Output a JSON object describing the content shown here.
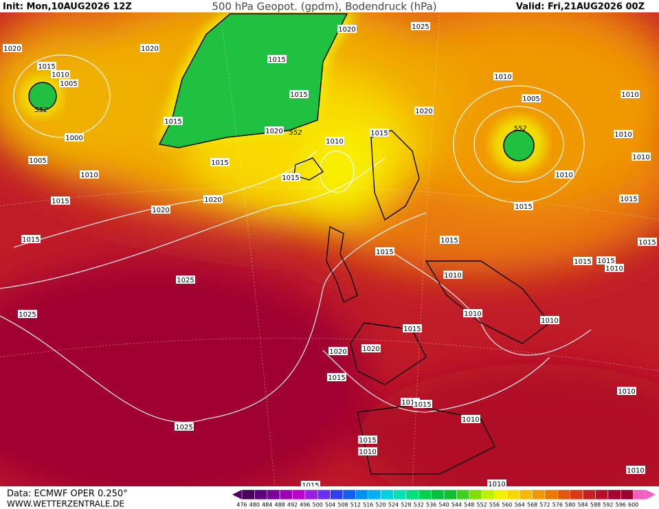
{
  "header": {
    "init": "Init: Mon,10AUG2026 12Z",
    "title": "500 hPa Geopot. (gpdm), Bodendruck (hPa)",
    "valid": "Valid: Fri,21AUG2026 00Z"
  },
  "footer": {
    "source": "Data: ECMWF OPER 0.250°",
    "site": "WWW.WETTERZENTRALE.DE"
  },
  "geopotential_labels": [
    552,
    552,
    552
  ],
  "isobar_labels": [
    1020,
    1020,
    1025,
    1015,
    1010,
    1005,
    1020,
    1015,
    1015,
    1015,
    1020,
    1005,
    1010,
    1010,
    1000,
    1020,
    1015,
    1010,
    1005,
    1015,
    1010,
    1010,
    1010,
    1015,
    1010,
    1015,
    1020,
    1020,
    1015,
    1015,
    1015,
    1015,
    1015,
    1015,
    1015,
    1015,
    1010,
    1010,
    1025,
    1025,
    1010,
    1010,
    1015,
    1020,
    1020,
    1015,
    1010,
    1015,
    1015,
    1010,
    1025,
    1015,
    1010,
    1010,
    1010,
    1015
  ],
  "legend": {
    "levels": [
      476,
      480,
      484,
      488,
      492,
      496,
      500,
      504,
      508,
      512,
      516,
      520,
      524,
      528,
      532,
      536,
      540,
      544,
      548,
      552,
      556,
      560,
      564,
      568,
      572,
      576,
      580,
      584,
      588,
      592,
      596,
      600
    ],
    "colors": [
      "#4b0060",
      "#5c0080",
      "#7a0098",
      "#9a00b0",
      "#b800c8",
      "#9a20e0",
      "#6a30f0",
      "#3040f0",
      "#1060f0",
      "#0090f0",
      "#00b0f0",
      "#00d0e0",
      "#00e0b0",
      "#00e080",
      "#00d050",
      "#00c040",
      "#10c030",
      "#40d020",
      "#80e000",
      "#c0f000",
      "#f0f000",
      "#f8d800",
      "#f8b800",
      "#f09800",
      "#e87800",
      "#e05810",
      "#d83818",
      "#c82020",
      "#b81028",
      "#a80030",
      "#980030",
      "#f060c0"
    ]
  }
}
